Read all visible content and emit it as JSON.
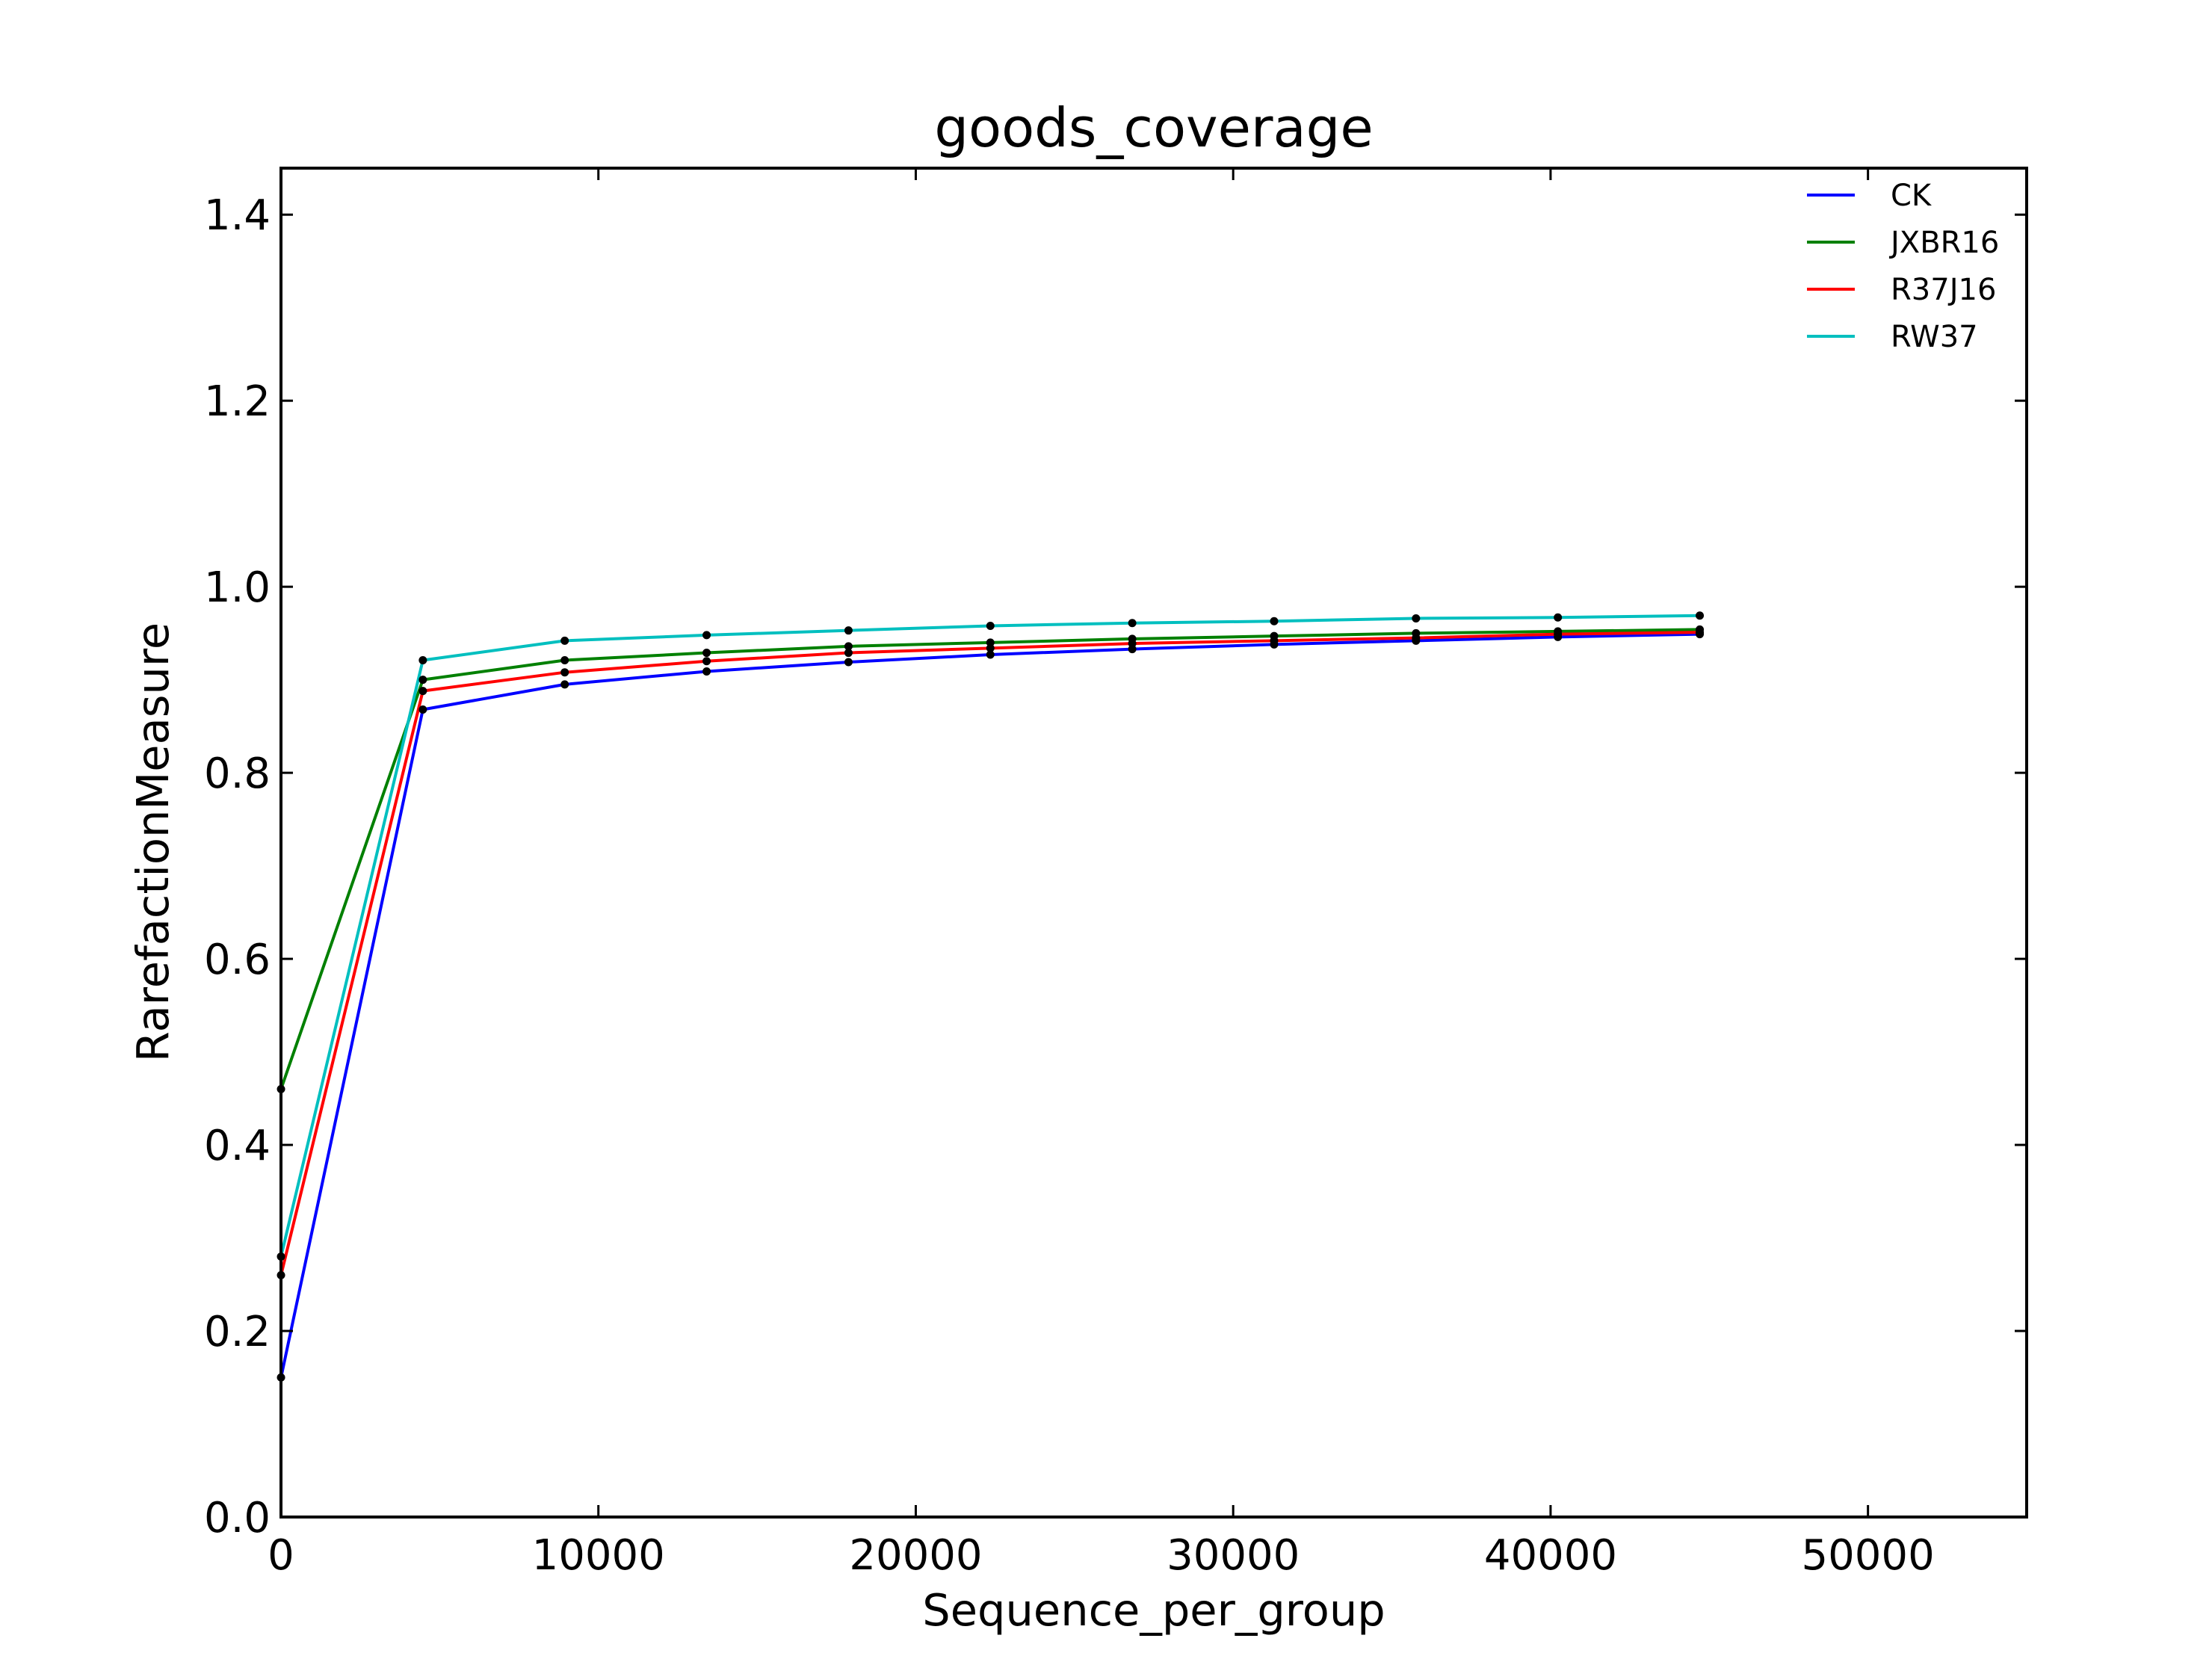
{
  "chart_data": {
    "type": "line",
    "title": "goods_coverage",
    "xlabel": "Sequence_per_group",
    "ylabel": "RarefactionMeasure",
    "xlim": [
      0,
      55000
    ],
    "ylim": [
      0,
      1.45
    ],
    "xticks": [
      0,
      10000,
      20000,
      30000,
      40000,
      50000
    ],
    "xtick_labels": [
      "0",
      "10000",
      "20000",
      "30000",
      "40000",
      "50000"
    ],
    "yticks": [
      0.0,
      0.2,
      0.4,
      0.6,
      0.8,
      1.0,
      1.2,
      1.4
    ],
    "ytick_labels": [
      "0.0",
      "0.2",
      "0.4",
      "0.6",
      "0.8",
      "1.0",
      "1.2",
      "1.4"
    ],
    "grid": false,
    "legend_position": "top-right",
    "x": [
      1,
      4470,
      8940,
      13410,
      17880,
      22350,
      26820,
      31290,
      35760,
      40230,
      44700
    ],
    "series": [
      {
        "name": "CK",
        "color": "#0000ff",
        "values": [
          0.15,
          0.868,
          0.895,
          0.909,
          0.919,
          0.927,
          0.933,
          0.938,
          0.942,
          0.946,
          0.949
        ]
      },
      {
        "name": "JXBR16",
        "color": "#008000",
        "values": [
          0.46,
          0.9,
          0.921,
          0.929,
          0.936,
          0.94,
          0.944,
          0.947,
          0.95,
          0.952,
          0.954
        ]
      },
      {
        "name": "R37J16",
        "color": "#ff0000",
        "values": [
          0.26,
          0.888,
          0.908,
          0.92,
          0.929,
          0.934,
          0.939,
          0.942,
          0.945,
          0.949,
          0.951
        ]
      },
      {
        "name": "RW37",
        "color": "#00bfbf",
        "values": [
          0.28,
          0.921,
          0.942,
          0.948,
          0.953,
          0.958,
          0.961,
          0.963,
          0.966,
          0.967,
          0.969
        ]
      }
    ]
  }
}
